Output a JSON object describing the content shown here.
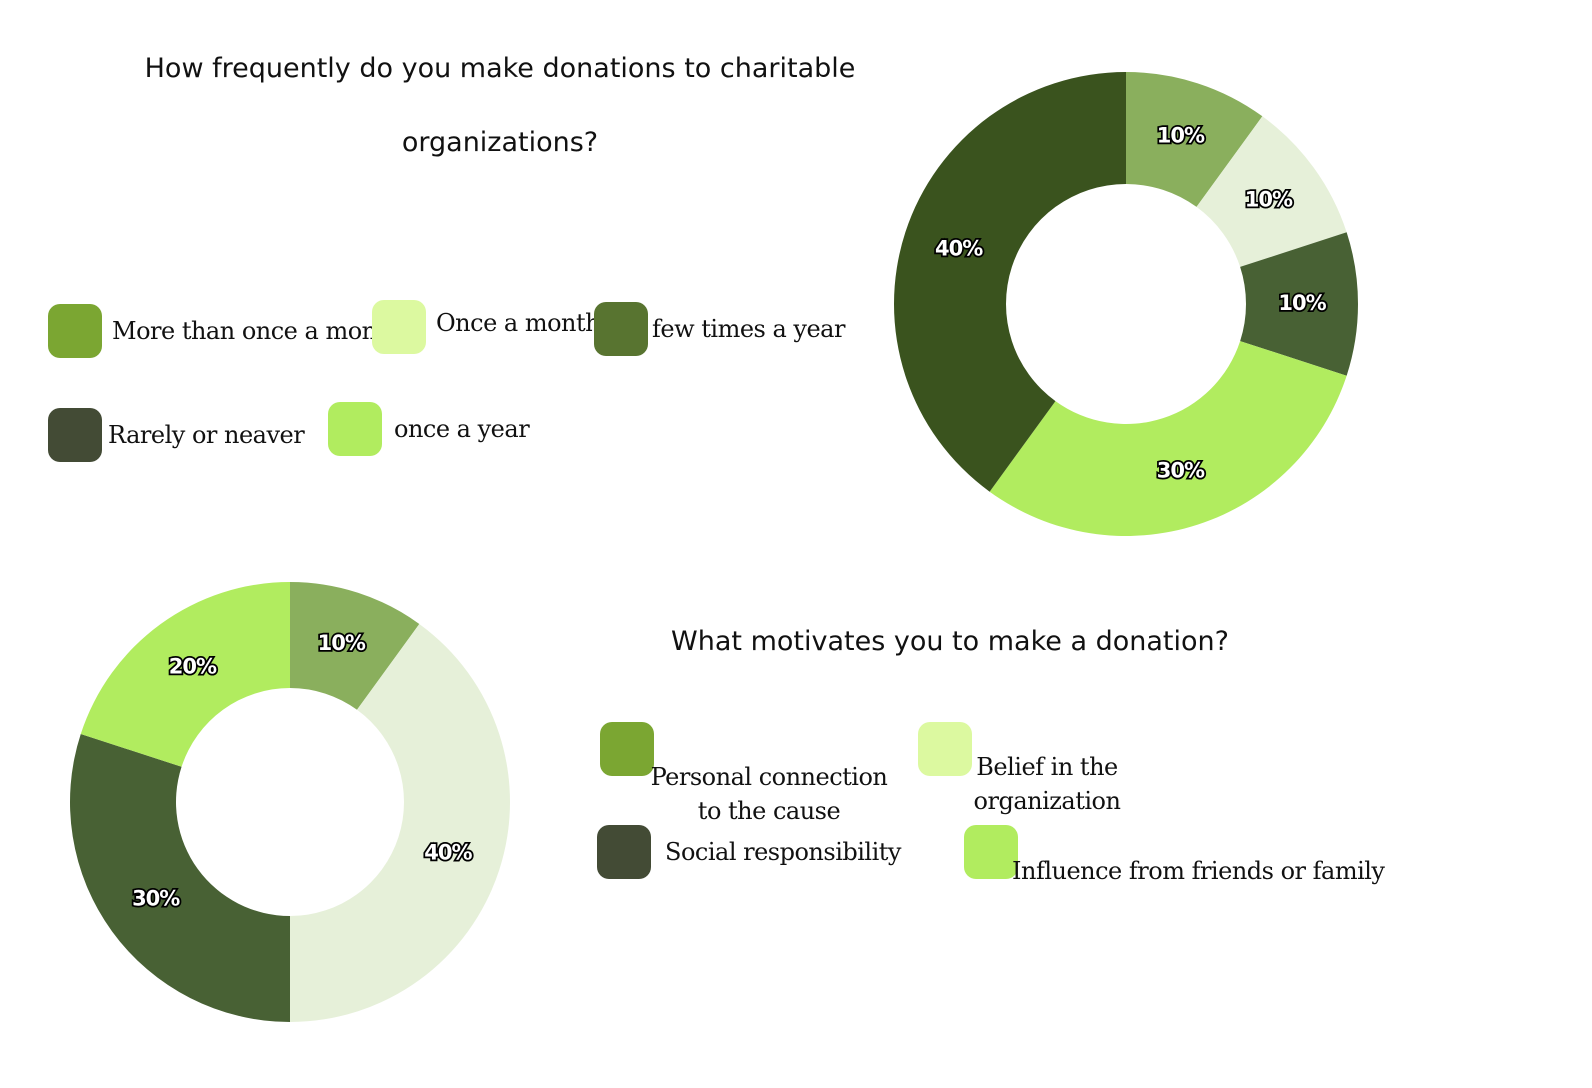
{
  "colors": {
    "accent_green": "#7ba632",
    "pale_green": "#dcf9a0",
    "mid_dark_green": "#587430",
    "dark_olive": "#434b35",
    "lime": "#b1ec5f",
    "slice_sage": "#8aaf5d",
    "slice_pale": "#e6f0d9",
    "slice_forest": "#486134",
    "slice_darkest": "#3a531e"
  },
  "chart_data": [
    {
      "type": "donut",
      "title_line1": "How frequently do you make donations to charitable",
      "title_line2": "organizations?",
      "legend": [
        {
          "label": "More than once a month",
          "color": "#7ba632"
        },
        {
          "label": "Once a month",
          "color": "#dcf9a0"
        },
        {
          "label": "few times a year",
          "color": "#587430"
        },
        {
          "label": "Rarely or  neaver",
          "color": "#434b35"
        },
        {
          "label": "once  a year",
          "color": "#b1ec5f"
        }
      ],
      "slices": [
        {
          "value": 10,
          "label": "10%",
          "color": "#8aaf5d"
        },
        {
          "value": 10,
          "label": "10%",
          "color": "#e6f0d9"
        },
        {
          "value": 10,
          "label": "10%",
          "color": "#486134"
        },
        {
          "value": 30,
          "label": "30%",
          "color": "#b1ec5f"
        },
        {
          "value": 40,
          "label": "40%",
          "color": "#3a531e"
        }
      ]
    },
    {
      "type": "donut",
      "title": "What motivates you to make a donation?",
      "legend": [
        {
          "label": "Personal connection to the cause",
          "color": "#7ba632"
        },
        {
          "label": "Belief in the organization",
          "color": "#dcf9a0"
        },
        {
          "label": "Social responsibility",
          "color": "#434b35"
        },
        {
          "label": "Influence  from friends or family",
          "color": "#b1ec5f"
        }
      ],
      "slices": [
        {
          "value": 10,
          "label": "10%",
          "color": "#8aaf5d"
        },
        {
          "value": 40,
          "label": "40%",
          "color": "#e6f0d9"
        },
        {
          "value": 30,
          "label": "30%",
          "color": "#486134"
        },
        {
          "value": 20,
          "label": "20%",
          "color": "#b1ec5f"
        }
      ]
    }
  ]
}
